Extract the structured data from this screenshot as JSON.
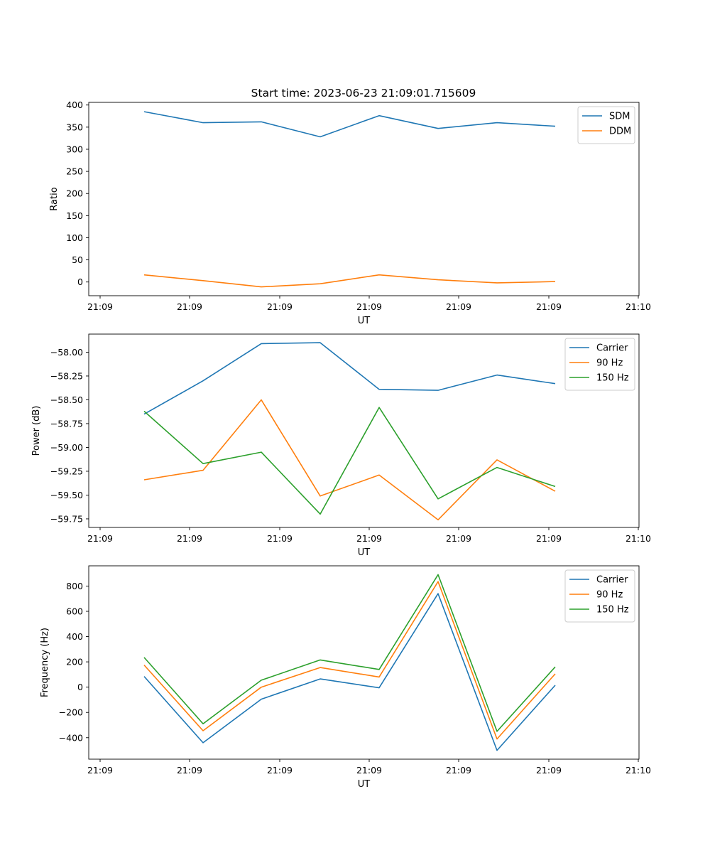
{
  "figure_title": "Start time: 2023-06-23 21:09:01.715609",
  "chart_data": [
    {
      "type": "line",
      "title": "Start time: 2023-06-23 21:09:01.715609",
      "xlabel": "UT",
      "ylabel": "Ratio",
      "x_tick_labels": [
        "21:09",
        "21:09",
        "21:09",
        "21:09",
        "21:09",
        "21:09",
        "21:10"
      ],
      "y_ticks": [
        0,
        50,
        100,
        150,
        200,
        250,
        300,
        350,
        400
      ],
      "ylim": [
        -31,
        406
      ],
      "legend_position": "upper right",
      "series": [
        {
          "name": "SDM",
          "color": "#1f77b4",
          "values": [
            385,
            360,
            362,
            328,
            376,
            347,
            360,
            352
          ]
        },
        {
          "name": "DDM",
          "color": "#ff7f0e",
          "values": [
            16,
            3,
            -11,
            -4,
            16,
            5,
            -2,
            1
          ]
        }
      ]
    },
    {
      "type": "line",
      "title": "",
      "xlabel": "UT",
      "ylabel": "Power (dB)",
      "x_tick_labels": [
        "21:09",
        "21:09",
        "21:09",
        "21:09",
        "21:09",
        "21:09",
        "21:10"
      ],
      "y_ticks": [
        -59.75,
        -59.5,
        -59.25,
        -59.0,
        -58.75,
        -58.5,
        -58.25,
        -58.0
      ],
      "y_tick_labels": [
        "−59.75",
        "−59.50",
        "−59.25",
        "−59.00",
        "−58.75",
        "−58.50",
        "−58.25",
        "−58.00"
      ],
      "ylim": [
        -59.84,
        -57.81
      ],
      "legend_position": "upper right",
      "series": [
        {
          "name": "Carrier",
          "color": "#1f77b4",
          "values": [
            -58.65,
            -58.3,
            -57.91,
            -57.9,
            -58.39,
            -58.4,
            -58.24,
            -58.33
          ]
        },
        {
          "name": "90 Hz",
          "color": "#ff7f0e",
          "values": [
            -59.34,
            -59.24,
            -58.5,
            -59.51,
            -59.29,
            -59.76,
            -59.13,
            -59.46
          ]
        },
        {
          "name": "150 Hz",
          "color": "#2ca02c",
          "values": [
            -58.62,
            -59.17,
            -59.05,
            -59.7,
            -58.58,
            -59.54,
            -59.21,
            -59.41
          ]
        }
      ]
    },
    {
      "type": "line",
      "title": "",
      "xlabel": "UT",
      "ylabel": "Frequency (Hz)",
      "x_tick_labels": [
        "21:09",
        "21:09",
        "21:09",
        "21:09",
        "21:09",
        "21:09",
        "21:10"
      ],
      "y_ticks": [
        -400,
        -200,
        0,
        200,
        400,
        600,
        800
      ],
      "y_tick_labels": [
        "−400",
        "−200",
        "0",
        "200",
        "400",
        "600",
        "800"
      ],
      "ylim": [
        -570,
        960
      ],
      "legend_position": "upper right",
      "series": [
        {
          "name": "Carrier",
          "color": "#1f77b4",
          "values": [
            85,
            -440,
            -95,
            65,
            -5,
            740,
            -500,
            15
          ]
        },
        {
          "name": "90 Hz",
          "color": "#ff7f0e",
          "values": [
            175,
            -345,
            0,
            155,
            80,
            835,
            -410,
            105
          ]
        },
        {
          "name": "150 Hz",
          "color": "#2ca02c",
          "values": [
            235,
            -290,
            55,
            215,
            140,
            890,
            -350,
            160
          ]
        }
      ]
    }
  ]
}
